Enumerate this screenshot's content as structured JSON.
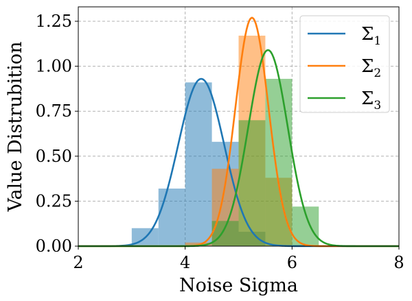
{
  "chart_data": {
    "type": "area",
    "xlabel": "Noise Sigma",
    "ylabel": "Value Distrubition",
    "xlim": [
      2,
      8
    ],
    "ylim": [
      0,
      1.33
    ],
    "xticks": [
      2,
      4,
      6,
      8
    ],
    "yticks": [
      0.0,
      0.25,
      0.5,
      0.75,
      1.0,
      1.25
    ],
    "xtick_labels": [
      "2",
      "4",
      "6",
      "8"
    ],
    "ytick_labels": [
      "0.00",
      "0.25",
      "0.50",
      "0.75",
      "1.00",
      "1.25"
    ],
    "grid": true,
    "legend_position": "top-right",
    "series": [
      {
        "name": "Σ1",
        "name_base": "Σ",
        "name_sub": "1",
        "color": "#1f77b4",
        "mean": 4.3,
        "peak": 0.93,
        "sd": 0.43,
        "hist": {
          "edges": [
            3.0,
            3.5,
            4.0,
            4.5,
            5.0,
            5.5
          ],
          "values": [
            0.1,
            0.32,
            0.91,
            0.58,
            0.08
          ]
        }
      },
      {
        "name": "Σ2",
        "name_base": "Σ",
        "name_sub": "2",
        "color": "#ff7f0e",
        "mean": 5.25,
        "peak": 1.27,
        "sd": 0.31,
        "hist": {
          "edges": [
            4.0,
            4.5,
            5.0,
            5.5,
            6.0
          ],
          "values": [
            0.02,
            0.43,
            1.17,
            0.38
          ]
        }
      },
      {
        "name": "Σ3",
        "name_base": "Σ",
        "name_sub": "3",
        "color": "#2ca02c",
        "mean": 5.55,
        "peak": 1.09,
        "sd": 0.37,
        "hist": {
          "edges": [
            4.5,
            5.0,
            5.5,
            6.0,
            6.5
          ],
          "values": [
            0.14,
            0.7,
            0.93,
            0.22
          ]
        }
      }
    ]
  }
}
